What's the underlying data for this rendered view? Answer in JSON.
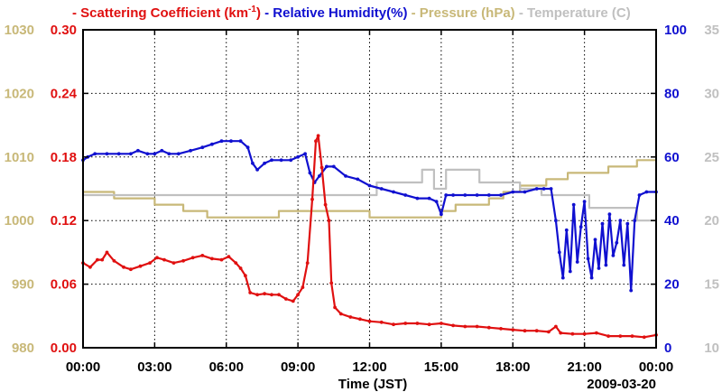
{
  "chart_data": {
    "type": "line",
    "legend": [
      {
        "prefix": "- ",
        "label": "Scattering Coefficient (km",
        "sup": "-1",
        "suffix": ")",
        "color": "#e01010"
      },
      {
        "prefix": " - ",
        "label": "Relative Humidity(%)",
        "color": "#1010d0"
      },
      {
        "prefix": " - ",
        "label": "Pressure (hPa)",
        "color": "#c8b878"
      },
      {
        "prefix": " - ",
        "label": "Temperature (C)",
        "color": "#c0c0c0"
      }
    ],
    "xlabel": "Time (JST)",
    "date_label": "2009-03-20",
    "x_range_hours": [
      0,
      24
    ],
    "x_ticks": [
      {
        "h": 0,
        "label": "00:00"
      },
      {
        "h": 3,
        "label": "03:00"
      },
      {
        "h": 6,
        "label": "06:00"
      },
      {
        "h": 9,
        "label": "09:00"
      },
      {
        "h": 12,
        "label": "12:00"
      },
      {
        "h": 15,
        "label": "15:00"
      },
      {
        "h": 18,
        "label": "18:00"
      },
      {
        "h": 21,
        "label": "21:00"
      },
      {
        "h": 24,
        "label": "00:00"
      }
    ],
    "axes": {
      "pressure": {
        "range": [
          980,
          1030
        ],
        "ticks": [
          "980",
          "990",
          "1000",
          "1010",
          "1020",
          "1030"
        ],
        "color": "#c8b878"
      },
      "scattering": {
        "range": [
          0,
          0.3
        ],
        "ticks": [
          "0.00",
          "0.06",
          "0.12",
          "0.18",
          "0.24",
          "0.30"
        ],
        "color": "#e01010"
      },
      "humidity": {
        "range": [
          0,
          100
        ],
        "ticks": [
          "0",
          "20",
          "40",
          "60",
          "80",
          "100"
        ],
        "color": "#1010d0"
      },
      "temperature": {
        "range": [
          10,
          35
        ],
        "ticks": [
          "10",
          "15",
          "20",
          "25",
          "30",
          "35"
        ],
        "color": "#c0c0c0"
      }
    },
    "series": [
      {
        "name": "Scattering Coefficient",
        "axis": "scattering",
        "color": "#e01010",
        "markers": true,
        "points": [
          [
            0,
            0.08
          ],
          [
            0.3,
            0.076
          ],
          [
            0.6,
            0.083
          ],
          [
            0.8,
            0.083
          ],
          [
            1.0,
            0.09
          ],
          [
            1.3,
            0.082
          ],
          [
            1.7,
            0.076
          ],
          [
            2.0,
            0.074
          ],
          [
            2.4,
            0.077
          ],
          [
            2.8,
            0.08
          ],
          [
            3.1,
            0.085
          ],
          [
            3.4,
            0.083
          ],
          [
            3.8,
            0.08
          ],
          [
            4.2,
            0.082
          ],
          [
            4.6,
            0.085
          ],
          [
            5.0,
            0.087
          ],
          [
            5.4,
            0.084
          ],
          [
            5.8,
            0.083
          ],
          [
            6.1,
            0.086
          ],
          [
            6.4,
            0.08
          ],
          [
            6.6,
            0.075
          ],
          [
            6.8,
            0.068
          ],
          [
            7.0,
            0.052
          ],
          [
            7.3,
            0.05
          ],
          [
            7.6,
            0.051
          ],
          [
            7.9,
            0.05
          ],
          [
            8.2,
            0.05
          ],
          [
            8.5,
            0.046
          ],
          [
            8.8,
            0.044
          ],
          [
            9.0,
            0.05
          ],
          [
            9.2,
            0.057
          ],
          [
            9.4,
            0.08
          ],
          [
            9.6,
            0.14
          ],
          [
            9.75,
            0.195
          ],
          [
            9.85,
            0.2
          ],
          [
            10.0,
            0.17
          ],
          [
            10.15,
            0.135
          ],
          [
            10.3,
            0.12
          ],
          [
            10.4,
            0.061
          ],
          [
            10.55,
            0.038
          ],
          [
            10.8,
            0.032
          ],
          [
            11.2,
            0.029
          ],
          [
            11.6,
            0.027
          ],
          [
            12.0,
            0.025
          ],
          [
            12.5,
            0.024
          ],
          [
            13.0,
            0.022
          ],
          [
            13.5,
            0.023
          ],
          [
            14.0,
            0.023
          ],
          [
            14.5,
            0.022
          ],
          [
            15.0,
            0.023
          ],
          [
            15.5,
            0.021
          ],
          [
            16.0,
            0.02
          ],
          [
            16.5,
            0.02
          ],
          [
            17.0,
            0.019
          ],
          [
            17.5,
            0.018
          ],
          [
            18.0,
            0.017
          ],
          [
            18.5,
            0.016
          ],
          [
            19.0,
            0.016
          ],
          [
            19.5,
            0.015
          ],
          [
            19.8,
            0.02
          ],
          [
            20.0,
            0.014
          ],
          [
            20.5,
            0.013
          ],
          [
            21.0,
            0.013
          ],
          [
            21.5,
            0.014
          ],
          [
            22.0,
            0.011
          ],
          [
            22.5,
            0.011
          ],
          [
            23.0,
            0.011
          ],
          [
            23.5,
            0.01
          ],
          [
            24.0,
            0.012
          ]
        ]
      },
      {
        "name": "Relative Humidity",
        "axis": "humidity",
        "color": "#1010d0",
        "markers": true,
        "points": [
          [
            0,
            59
          ],
          [
            0.2,
            60
          ],
          [
            0.5,
            61
          ],
          [
            1.0,
            61
          ],
          [
            1.5,
            61
          ],
          [
            2.0,
            61
          ],
          [
            2.3,
            62
          ],
          [
            2.7,
            61
          ],
          [
            3.0,
            61
          ],
          [
            3.3,
            62
          ],
          [
            3.6,
            61
          ],
          [
            4.0,
            61
          ],
          [
            4.5,
            62
          ],
          [
            5.0,
            63
          ],
          [
            5.4,
            64
          ],
          [
            5.8,
            65
          ],
          [
            6.2,
            65
          ],
          [
            6.6,
            65
          ],
          [
            6.9,
            63
          ],
          [
            7.1,
            58
          ],
          [
            7.3,
            56
          ],
          [
            7.6,
            58
          ],
          [
            7.9,
            59
          ],
          [
            8.3,
            59
          ],
          [
            8.7,
            59
          ],
          [
            9.0,
            60
          ],
          [
            9.3,
            61
          ],
          [
            9.5,
            55
          ],
          [
            9.7,
            52
          ],
          [
            9.9,
            54
          ],
          [
            10.2,
            57
          ],
          [
            10.5,
            57
          ],
          [
            11.0,
            54
          ],
          [
            11.5,
            53
          ],
          [
            12.0,
            51
          ],
          [
            12.5,
            50
          ],
          [
            13.0,
            49
          ],
          [
            13.5,
            48
          ],
          [
            14.0,
            47
          ],
          [
            14.5,
            47
          ],
          [
            14.8,
            46
          ],
          [
            15.0,
            42
          ],
          [
            15.2,
            48
          ],
          [
            15.5,
            48
          ],
          [
            16.0,
            48
          ],
          [
            16.5,
            48
          ],
          [
            17.0,
            48
          ],
          [
            17.5,
            48
          ],
          [
            18.0,
            49
          ],
          [
            18.5,
            49
          ],
          [
            19.0,
            50
          ],
          [
            19.3,
            50
          ],
          [
            19.6,
            50
          ],
          [
            19.8,
            40
          ],
          [
            19.95,
            30
          ],
          [
            20.1,
            22
          ],
          [
            20.25,
            37
          ],
          [
            20.4,
            24
          ],
          [
            20.55,
            45
          ],
          [
            20.7,
            27
          ],
          [
            20.85,
            38
          ],
          [
            21.0,
            46
          ],
          [
            21.15,
            28
          ],
          [
            21.3,
            22
          ],
          [
            21.45,
            34
          ],
          [
            21.6,
            25
          ],
          [
            21.75,
            39
          ],
          [
            21.9,
            26
          ],
          [
            22.05,
            42
          ],
          [
            22.2,
            29
          ],
          [
            22.35,
            33
          ],
          [
            22.5,
            40
          ],
          [
            22.65,
            26
          ],
          [
            22.8,
            39
          ],
          [
            22.95,
            18
          ],
          [
            23.1,
            40
          ],
          [
            23.3,
            48
          ],
          [
            23.6,
            49
          ],
          [
            24.0,
            49
          ]
        ]
      },
      {
        "name": "Pressure",
        "axis": "pressure",
        "color": "#c8b878",
        "markers": false,
        "points": [
          [
            0,
            1004.5
          ],
          [
            1.3,
            1004.5
          ],
          [
            1.3,
            1003.5
          ],
          [
            3.0,
            1003.5
          ],
          [
            3.0,
            1002.5
          ],
          [
            4.2,
            1002.5
          ],
          [
            4.2,
            1001.5
          ],
          [
            5.2,
            1001.5
          ],
          [
            5.2,
            1000.5
          ],
          [
            8.2,
            1000.5
          ],
          [
            8.2,
            1001.5
          ],
          [
            12.0,
            1001.5
          ],
          [
            12.0,
            1000.5
          ],
          [
            15.0,
            1000.5
          ],
          [
            15.0,
            1001.5
          ],
          [
            15.6,
            1001.5
          ],
          [
            15.6,
            1002.5
          ],
          [
            17.0,
            1002.5
          ],
          [
            17.0,
            1003.5
          ],
          [
            17.6,
            1003.5
          ],
          [
            17.6,
            1004.5
          ],
          [
            18.3,
            1004.5
          ],
          [
            18.3,
            1005.5
          ],
          [
            19.4,
            1005.5
          ],
          [
            19.4,
            1006.5
          ],
          [
            20.3,
            1006.5
          ],
          [
            20.3,
            1007.5
          ],
          [
            22.0,
            1007.5
          ],
          [
            22.0,
            1008.5
          ],
          [
            23.2,
            1008.5
          ],
          [
            23.2,
            1009.5
          ],
          [
            24.0,
            1009.5
          ]
        ]
      },
      {
        "name": "Temperature",
        "axis": "temperature",
        "color": "#c0c0c0",
        "markers": false,
        "points": [
          [
            0,
            22.0
          ],
          [
            12.3,
            22.0
          ],
          [
            12.3,
            23.0
          ],
          [
            14.2,
            23.0
          ],
          [
            14.2,
            24.0
          ],
          [
            14.7,
            24.0
          ],
          [
            14.7,
            22.5
          ],
          [
            15.2,
            22.5
          ],
          [
            15.2,
            24.0
          ],
          [
            16.6,
            24.0
          ],
          [
            16.6,
            23.0
          ],
          [
            18.3,
            23.0
          ],
          [
            18.3,
            22.5
          ],
          [
            19.2,
            22.5
          ],
          [
            19.2,
            22.0
          ],
          [
            21.2,
            22.0
          ],
          [
            21.2,
            21.0
          ],
          [
            23.2,
            21.0
          ],
          [
            23.2,
            20.0
          ],
          [
            24.0,
            20.0
          ]
        ]
      }
    ]
  }
}
